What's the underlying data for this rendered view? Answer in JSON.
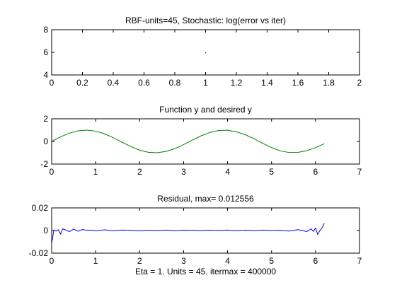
{
  "chart_data": [
    {
      "type": "scatter",
      "title": "RBF-units=45, Stochastic: log(error vs iter)",
      "xlim": [
        0,
        2
      ],
      "ylim": [
        4,
        8
      ],
      "xticks": [
        "0",
        "0.2",
        "0.4",
        "0.6",
        "0.8",
        "1",
        "1.2",
        "1.4",
        "1.6",
        "1.8",
        "2"
      ],
      "yticks": [
        "4",
        "6",
        "8"
      ],
      "series": [
        {
          "color": "#0000ff",
          "x": [
            1.0
          ],
          "y": [
            5.97
          ]
        }
      ]
    },
    {
      "type": "line",
      "title": "Function y and desired y",
      "xlim": [
        0,
        7
      ],
      "ylim": [
        -2,
        2
      ],
      "xticks": [
        "0",
        "1",
        "2",
        "3",
        "4",
        "5",
        "6",
        "7"
      ],
      "yticks": [
        "-2",
        "0",
        "2"
      ],
      "series": [
        {
          "color": "#008000",
          "x": [
            0,
            0.2,
            0.4,
            0.6,
            0.8,
            1.0,
            1.2,
            1.4,
            1.6,
            1.8,
            2.0,
            2.2,
            2.4,
            2.6,
            2.8,
            3.0,
            3.2,
            3.4,
            3.6,
            3.8,
            4.0,
            4.2,
            4.4,
            4.6,
            4.8,
            5.0,
            5.2,
            5.4,
            5.6,
            5.8,
            6.0,
            6.2
          ],
          "y": [
            0,
            0.4,
            0.73,
            0.94,
            1.0,
            0.91,
            0.68,
            0.33,
            -0.07,
            -0.45,
            -0.78,
            -0.96,
            -1.0,
            -0.88,
            -0.64,
            -0.28,
            0.12,
            0.5,
            0.8,
            0.97,
            0.99,
            0.85,
            0.6,
            0.24,
            -0.17,
            -0.54,
            -0.84,
            -0.98,
            -0.97,
            -0.82,
            -0.55,
            -0.2
          ]
        }
      ]
    },
    {
      "type": "line",
      "title": "Residual, max= 0.012556",
      "xlabel": "Eta = 1. Units = 45. itermax = 400000",
      "xlim": [
        0,
        7
      ],
      "ylim": [
        -0.02,
        0.02
      ],
      "xticks": [
        "0",
        "1",
        "2",
        "3",
        "4",
        "5",
        "6",
        "7"
      ],
      "yticks": [
        "-0.02",
        "0",
        "0.02"
      ],
      "series": [
        {
          "color": "#0000ff",
          "x": [
            0,
            0.05,
            0.1,
            0.15,
            0.2,
            0.25,
            0.3,
            0.4,
            0.5,
            0.6,
            0.7,
            0.8,
            0.9,
            1.0,
            1.2,
            1.4,
            1.6,
            1.8,
            2.0,
            2.2,
            2.4,
            2.6,
            2.8,
            3.0,
            3.2,
            3.4,
            3.6,
            3.8,
            4.0,
            4.2,
            4.4,
            4.6,
            4.8,
            5.0,
            5.2,
            5.4,
            5.6,
            5.8,
            5.9,
            5.95,
            6.0,
            6.05,
            6.1,
            6.15,
            6.2
          ],
          "y": [
            -0.0115,
            0.0005,
            -0.0005,
            0.0007,
            -0.003,
            0.0015,
            0.0008,
            -0.001,
            0.0012,
            -0.0006,
            0.0009,
            0.0002,
            0.0004,
            -0.0003,
            0.0006,
            -0.0001,
            0.0004,
            0.0002,
            -0.0002,
            0.0003,
            0.0001,
            0.0004,
            -0.0001,
            0.0003,
            0.0002,
            0.0,
            0.0003,
            0.0001,
            0.0004,
            -0.0001,
            0.0003,
            0.0,
            0.0004,
            0.0001,
            0.0002,
            -0.0005,
            0.0008,
            -0.0009,
            0.0015,
            -0.0008,
            0.0022,
            -0.0035,
            0.0,
            0.0025,
            0.0065
          ]
        }
      ]
    }
  ]
}
